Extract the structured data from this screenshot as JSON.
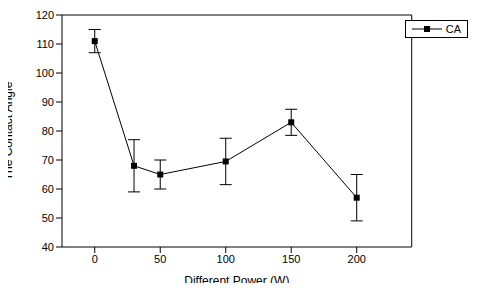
{
  "chart_data": {
    "type": "line",
    "x_label": "Different Power (W)",
    "y_label": "The Contact Angle",
    "x": [
      0,
      30,
      50,
      100,
      150,
      200
    ],
    "series": [
      {
        "name": "CA",
        "color": "#000000",
        "marker": "square",
        "line_style": "solid",
        "values": [
          111,
          68,
          65,
          69.5,
          83,
          57
        ],
        "errors": [
          4,
          9,
          5,
          8,
          4.5,
          8
        ]
      }
    ],
    "xlim": [
      -25,
      242
    ],
    "xticks": [
      0,
      50,
      100,
      150,
      200
    ],
    "ylim": [
      40,
      120
    ],
    "yticks": [
      40,
      50,
      60,
      70,
      80,
      90,
      100,
      110,
      120
    ],
    "legend": "upper right",
    "grid": false
  }
}
